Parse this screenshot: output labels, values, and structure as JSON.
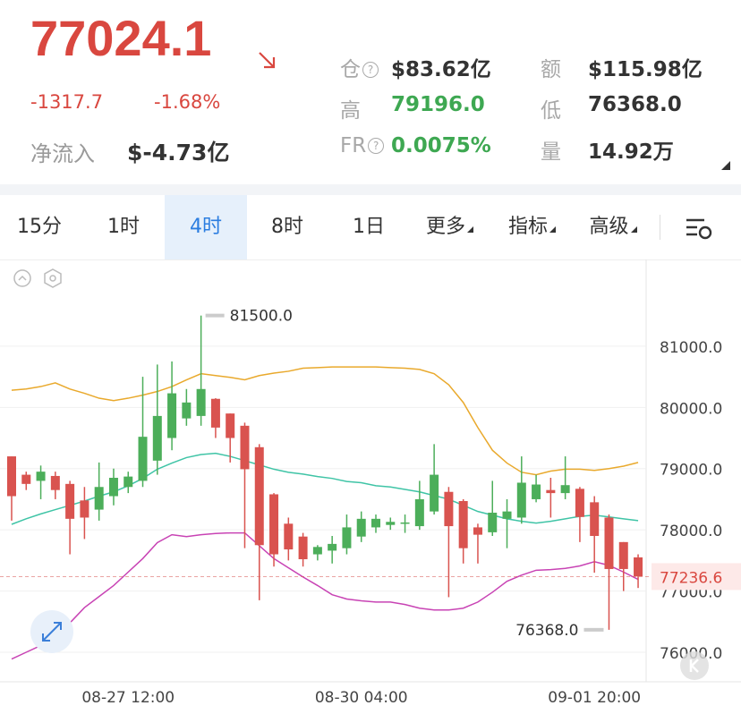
{
  "header": {
    "price": "77024.1",
    "change": "-1317.7",
    "change_pct": "-1.68%",
    "net_inflow_label": "净流入",
    "net_inflow_value": "$-4.73亿"
  },
  "stats": [
    {
      "label": "仓",
      "value": "$83.62亿",
      "color": "#333333",
      "help": true
    },
    {
      "label": "额",
      "value": "$115.98亿",
      "color": "#333333",
      "help": false
    },
    {
      "label": "高",
      "value": "79196.0",
      "color": "#3ea852",
      "help": false
    },
    {
      "label": "低",
      "value": "76368.0",
      "color": "#333333",
      "help": false
    },
    {
      "label": "FR",
      "value": "0.0075%",
      "color": "#3ea852",
      "help": true
    },
    {
      "label": "量",
      "value": "14.92万",
      "color": "#333333",
      "help": false
    }
  ],
  "tabs": {
    "items": [
      "15分",
      "1时",
      "4时",
      "8时",
      "1日",
      "更多",
      "指标",
      "高级"
    ],
    "active": 2,
    "dropdown": [
      false,
      false,
      false,
      false,
      false,
      true,
      true,
      true
    ]
  },
  "chart_data": {
    "type": "candlestick",
    "categories": [
      null,
      null,
      null,
      null,
      null,
      null,
      null,
      null,
      "08-27 12:00",
      null,
      null,
      null,
      null,
      null,
      null,
      null,
      null,
      null,
      null,
      null,
      null,
      null,
      null,
      null,
      "08-30 04:00",
      null,
      null,
      null,
      null,
      null,
      null,
      null,
      null,
      null,
      null,
      null,
      null,
      null,
      null,
      null,
      "09-01 20:00",
      null,
      null,
      null
    ],
    "open": [
      79200,
      78900,
      78800,
      78880,
      78750,
      78480,
      78330,
      78550,
      78700,
      78800,
      79130,
      79500,
      79820,
      79860,
      80140,
      79900,
      79700,
      79350,
      78580,
      78100,
      77890,
      77600,
      77660,
      77700,
      77890,
      78040,
      78080,
      78100,
      78060,
      78300,
      78620,
      78470,
      78040,
      77960,
      78180,
      78200,
      78500,
      78650,
      78600,
      78670,
      78450,
      78200,
      77800,
      77550
    ],
    "high": [
      79200,
      78950,
      79050,
      78950,
      78800,
      78700,
      79100,
      79000,
      78950,
      80500,
      80700,
      80750,
      80300,
      81500,
      80150,
      79900,
      79750,
      79400,
      78600,
      78200,
      77950,
      77750,
      77900,
      78250,
      78300,
      78250,
      78200,
      78250,
      78800,
      79400,
      78700,
      78500,
      78100,
      78800,
      78500,
      79200,
      78900,
      78850,
      79200,
      78700,
      78550,
      78250,
      77800,
      77600
    ],
    "low": [
      78150,
      78650,
      78500,
      78500,
      77600,
      77850,
      78150,
      78400,
      78600,
      78700,
      78900,
      79300,
      79700,
      79700,
      79500,
      79100,
      77700,
      76850,
      77400,
      77500,
      77400,
      77500,
      77450,
      77600,
      77800,
      77950,
      78000,
      77950,
      78000,
      78250,
      76900,
      77450,
      77450,
      77900,
      77700,
      78100,
      78450,
      78200,
      78500,
      77800,
      77300,
      76368,
      77000,
      77050
    ],
    "close": [
      78550,
      78750,
      78950,
      78650,
      78180,
      78200,
      78700,
      78850,
      78870,
      79520,
      79860,
      80230,
      80080,
      80300,
      79670,
      79500,
      78990,
      77750,
      77600,
      77680,
      77520,
      77720,
      77770,
      78040,
      78180,
      78180,
      78130,
      78120,
      78500,
      78900,
      78060,
      77700,
      77920,
      78280,
      78300,
      78770,
      78740,
      78600,
      78730,
      78210,
      77900,
      77360,
      77360,
      77240
    ],
    "up_color": "#4cae5a",
    "down_color": "#d9534f",
    "lines": [
      {
        "color": "#e9a92c",
        "values": [
          80280,
          80300,
          80340,
          80400,
          80300,
          80230,
          80150,
          80110,
          80150,
          80200,
          80260,
          80340,
          80450,
          80550,
          80520,
          80490,
          80450,
          80520,
          80560,
          80590,
          80640,
          80650,
          80660,
          80660,
          80660,
          80660,
          80650,
          80640,
          80620,
          80550,
          80370,
          80080,
          79670,
          79300,
          79090,
          78940,
          78900,
          78960,
          78990,
          78990,
          78970,
          79000,
          79040,
          79100
        ]
      },
      {
        "color": "#3fc4a6",
        "values": [
          78090,
          78180,
          78260,
          78330,
          78400,
          78470,
          78550,
          78620,
          78720,
          78840,
          78990,
          79090,
          79180,
          79230,
          79250,
          79200,
          79130,
          79060,
          78990,
          78940,
          78910,
          78870,
          78840,
          78790,
          78770,
          78720,
          78700,
          78660,
          78620,
          78560,
          78500,
          78400,
          78300,
          78240,
          78180,
          78140,
          78110,
          78140,
          78180,
          78220,
          78240,
          78210,
          78180,
          78150
        ]
      },
      {
        "color": "#c843b4",
        "values": [
          75890,
          76000,
          76110,
          76260,
          76480,
          76730,
          76910,
          77090,
          77310,
          77530,
          77790,
          77920,
          77890,
          77920,
          77940,
          77950,
          77950,
          77740,
          77530,
          77380,
          77230,
          77090,
          76940,
          76870,
          76840,
          76820,
          76820,
          76780,
          76720,
          76690,
          76690,
          76720,
          76820,
          76980,
          77160,
          77260,
          77340,
          77350,
          77370,
          77410,
          77480,
          77420,
          77310,
          77190
        ]
      }
    ],
    "ylim": [
      75547,
      82343
    ],
    "yticks": [
      {
        "value": 76000,
        "label": "76000.0"
      },
      {
        "value": 77000,
        "label": "77000.0"
      },
      {
        "value": 78000,
        "label": "78000.0"
      },
      {
        "value": 79000,
        "label": "79000.0"
      },
      {
        "value": 80000,
        "label": "80000.0"
      },
      {
        "value": 81000,
        "label": "81000.0"
      }
    ],
    "grid": true,
    "high_label": {
      "value": 81500,
      "label": "81500.0"
    },
    "low_label": {
      "value": 76368,
      "label": "76368.0"
    },
    "last_price": {
      "value": 77236.6,
      "label": "77236.6"
    }
  }
}
